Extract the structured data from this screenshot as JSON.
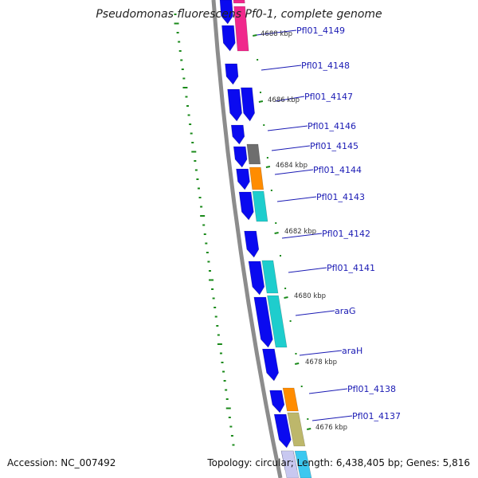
{
  "title": "Pseudomonas fluorescens Pf0-1, complete genome",
  "footer": {
    "accession": "Accession: NC_007492",
    "summary": "Topology: circular; Length: 6,438,405 bp; Genes: 5,816"
  },
  "colors": {
    "backbone": "#8c8c8c",
    "cds": "#0a0af0",
    "tick": "#1a8a1a",
    "label": "#1a1ab4",
    "pink": "#f0288c",
    "gray": "#6e6e6e",
    "orange": "#ff8c00",
    "teal": "#1ecdcd",
    "khaki": "#bdb76b",
    "lavender": "#c8c8f0",
    "cyan": "#3cc8f0"
  },
  "kbp_markers": [
    "4688 kbp",
    "4686 kbp",
    "4684 kbp",
    "4682 kbp",
    "4680 kbp",
    "4678 kbp",
    "4676 kbp"
  ],
  "genes": [
    {
      "label": "Pfl01_4149",
      "cog": "pink"
    },
    {
      "label": "Pfl01_4148",
      "cog": ""
    },
    {
      "label": "Pfl01_4147",
      "cog": ""
    },
    {
      "label": "Pfl01_4146",
      "cog": ""
    },
    {
      "label": "Pfl01_4145",
      "cog": "gray"
    },
    {
      "label": "Pfl01_4144",
      "cog": "orange"
    },
    {
      "label": "Pfl01_4143",
      "cog": "teal"
    },
    {
      "label": "Pfl01_4142",
      "cog": ""
    },
    {
      "label": "Pfl01_4141",
      "cog": "teal"
    },
    {
      "label": "araG",
      "cog": "teal"
    },
    {
      "label": "araH",
      "cog": ""
    },
    {
      "label": "Pfl01_4138",
      "cog": "orange"
    },
    {
      "label": "Pfl01_4137",
      "cog": "khaki"
    }
  ]
}
